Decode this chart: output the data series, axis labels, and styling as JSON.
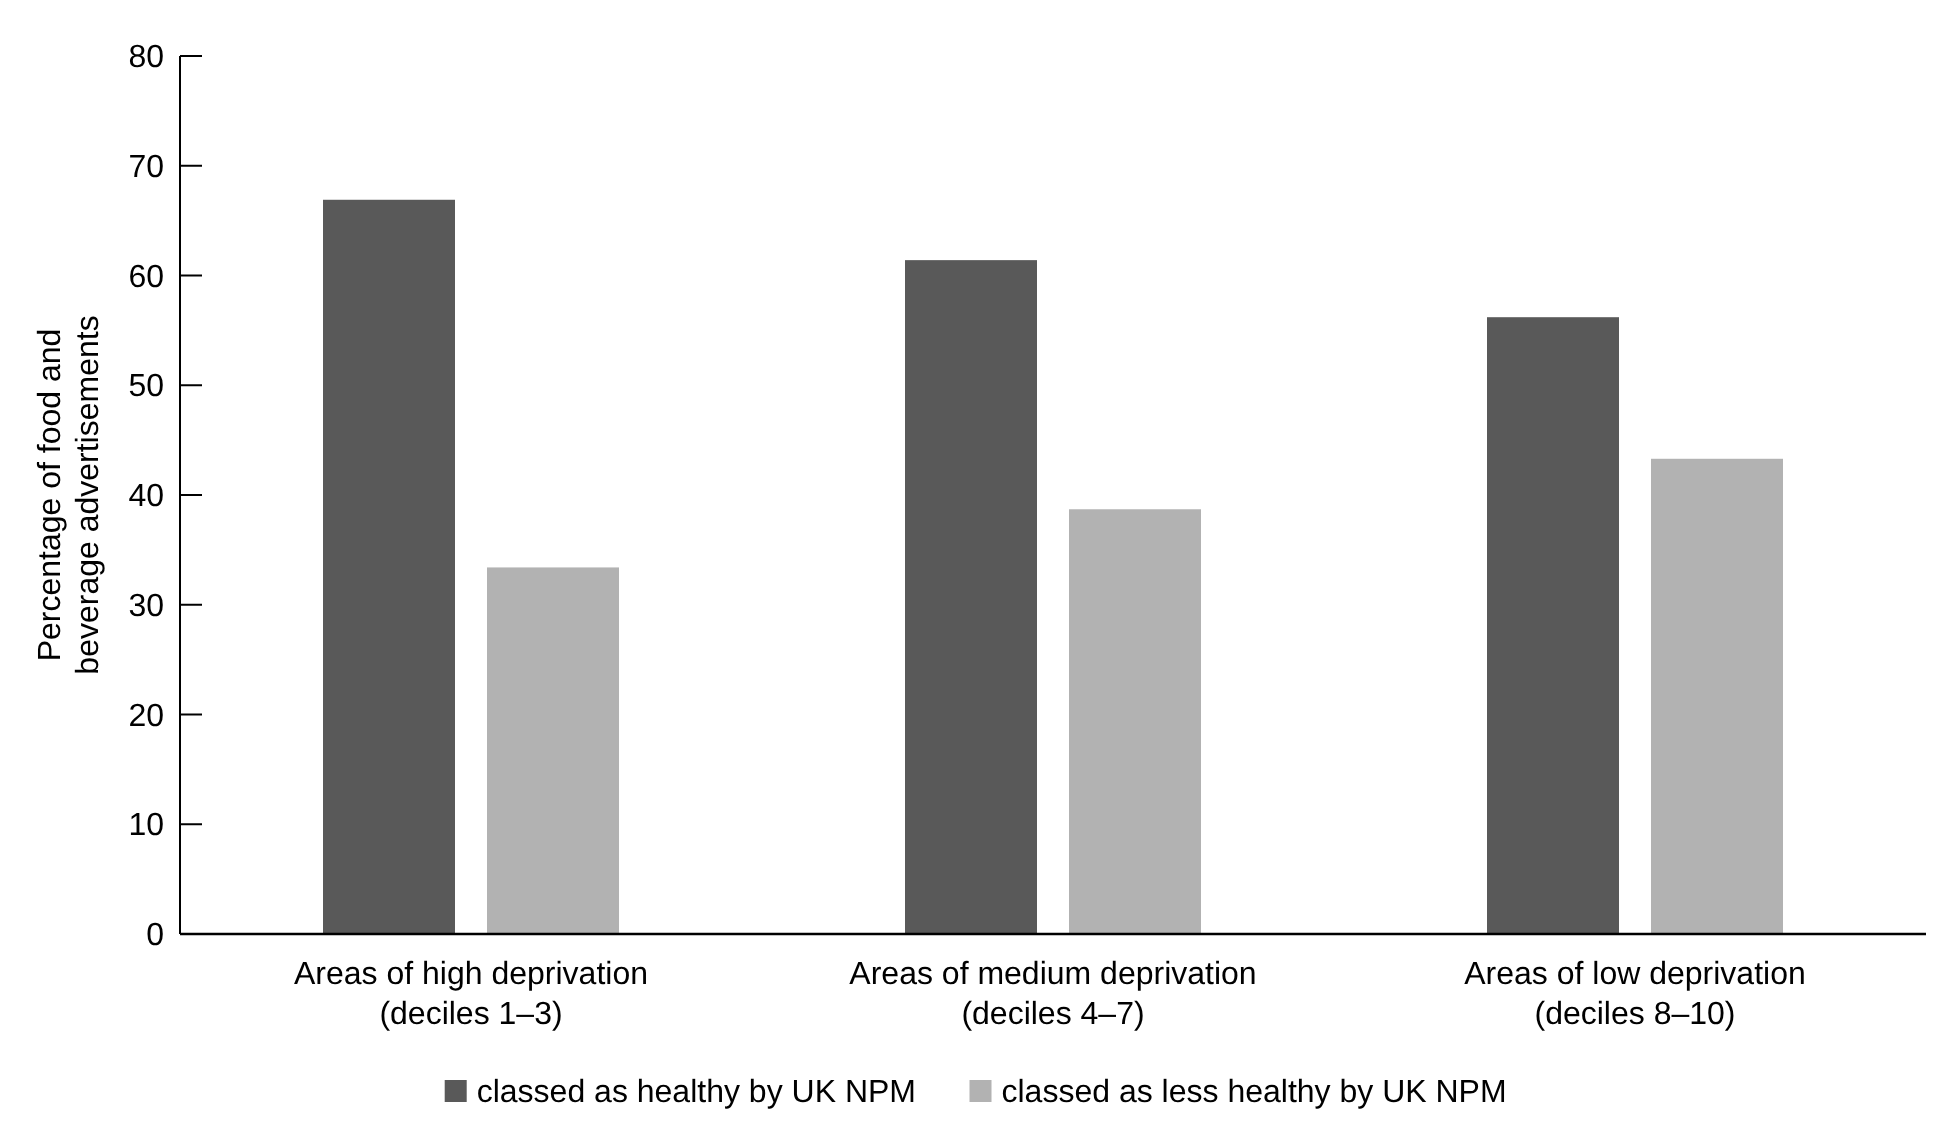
{
  "chart_data": {
    "type": "bar",
    "ylabel": "Percentage of food and beverage advertisements",
    "categories": [
      "Areas of high deprivation\n(deciles 1–3)",
      "Areas of medium deprivation\n(deciles 4–7)",
      "Areas of low deprivation\n(deciles 8–10)"
    ],
    "series": [
      {
        "name": "classed as healthy by UK NPM",
        "color": "#595959",
        "values": [
          66.9,
          61.4,
          56.2
        ]
      },
      {
        "name": "classed as less healthy by UK NPM",
        "color": "#b2b2b2",
        "values": [
          33.4,
          38.7,
          43.3
        ]
      }
    ],
    "ylim": [
      0,
      80
    ],
    "yticks": [
      0,
      10,
      20,
      30,
      40,
      50,
      60,
      70,
      80
    ],
    "grid": false,
    "legend": "bottom"
  }
}
